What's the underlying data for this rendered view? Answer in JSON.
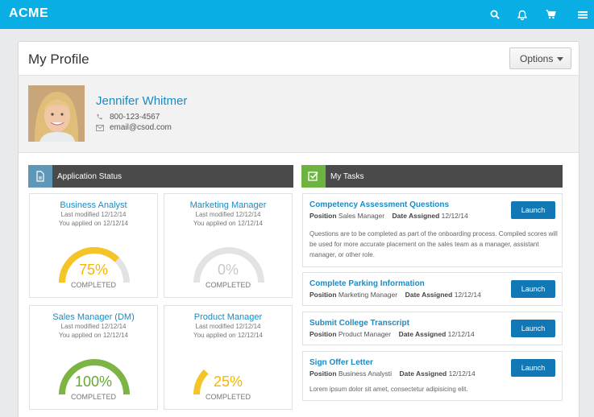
{
  "topbar": {
    "brand": "ACME",
    "icons": [
      "search-icon",
      "bell-icon",
      "cart-icon",
      "menu-icon"
    ],
    "color": "#09aee4"
  },
  "header": {
    "title": "My Profile",
    "options_label": "Options"
  },
  "profile": {
    "name": "Jennifer Whitmer",
    "phone": "800-123-4567",
    "email": "email@csod.com"
  },
  "application_status": {
    "title": "Application Status",
    "accent": "#5f97b8",
    "cards": [
      {
        "title": "Business Analyst",
        "modified": "Last modified 12/12/14",
        "applied": "You applied on 12/12/14",
        "percent_label": "75%",
        "percent": 75,
        "status": "COMPLETED",
        "color": "#f5c426"
      },
      {
        "title": "Marketing Manager",
        "modified": "Last modified 12/12/14",
        "applied": "You applied on 12/12/14",
        "percent_label": "0%",
        "percent": 0,
        "status": "COMPLETED",
        "color": "#cfcfcf"
      },
      {
        "title": "Sales Manager (DM)",
        "modified": "Last modified 12/12/14",
        "applied": "You applied on 12/12/14",
        "percent_label": "100%",
        "percent": 100,
        "status": "COMPLETED",
        "color": "#7db544"
      },
      {
        "title": "Product Manager",
        "modified": "Last modified 12/12/14",
        "applied": "You applied on 12/12/14",
        "percent_label": "25%",
        "percent": 25,
        "status": "COMPLETED",
        "color": "#f5c426"
      }
    ]
  },
  "tasks": {
    "title": "My Tasks",
    "accent": "#6db33f",
    "items": [
      {
        "title": "Competency Assessment Questions",
        "position_label": "Position",
        "position": "Sales Manager",
        "date_label": "Date Assigned",
        "date": "12/12/14",
        "description": "Questions are to be completed as part of the onboarding process. Compiled scores will be used for more accurate placement on the sales team as a manager, assistant manager, or other role.",
        "button": "Launch"
      },
      {
        "title": "Complete Parking Information",
        "position_label": "Position",
        "position": "Marketing Manager",
        "date_label": "Date Assigned",
        "date": "12/12/14",
        "description": "",
        "button": "Launch"
      },
      {
        "title": "Submit College Transcript",
        "position_label": "Position",
        "position": "Product Manager",
        "date_label": "Date Assigned",
        "date": "12/12/14",
        "description": "",
        "button": "Launch"
      },
      {
        "title": "Sign Offer Letter",
        "position_label": "Position",
        "position": "Business Analysti",
        "date_label": "Date Assigned",
        "date": "12/12/14",
        "description": "Lorem ipsum dolor sit amet, consectetur adipisicing elit.",
        "button": "Launch"
      }
    ]
  }
}
